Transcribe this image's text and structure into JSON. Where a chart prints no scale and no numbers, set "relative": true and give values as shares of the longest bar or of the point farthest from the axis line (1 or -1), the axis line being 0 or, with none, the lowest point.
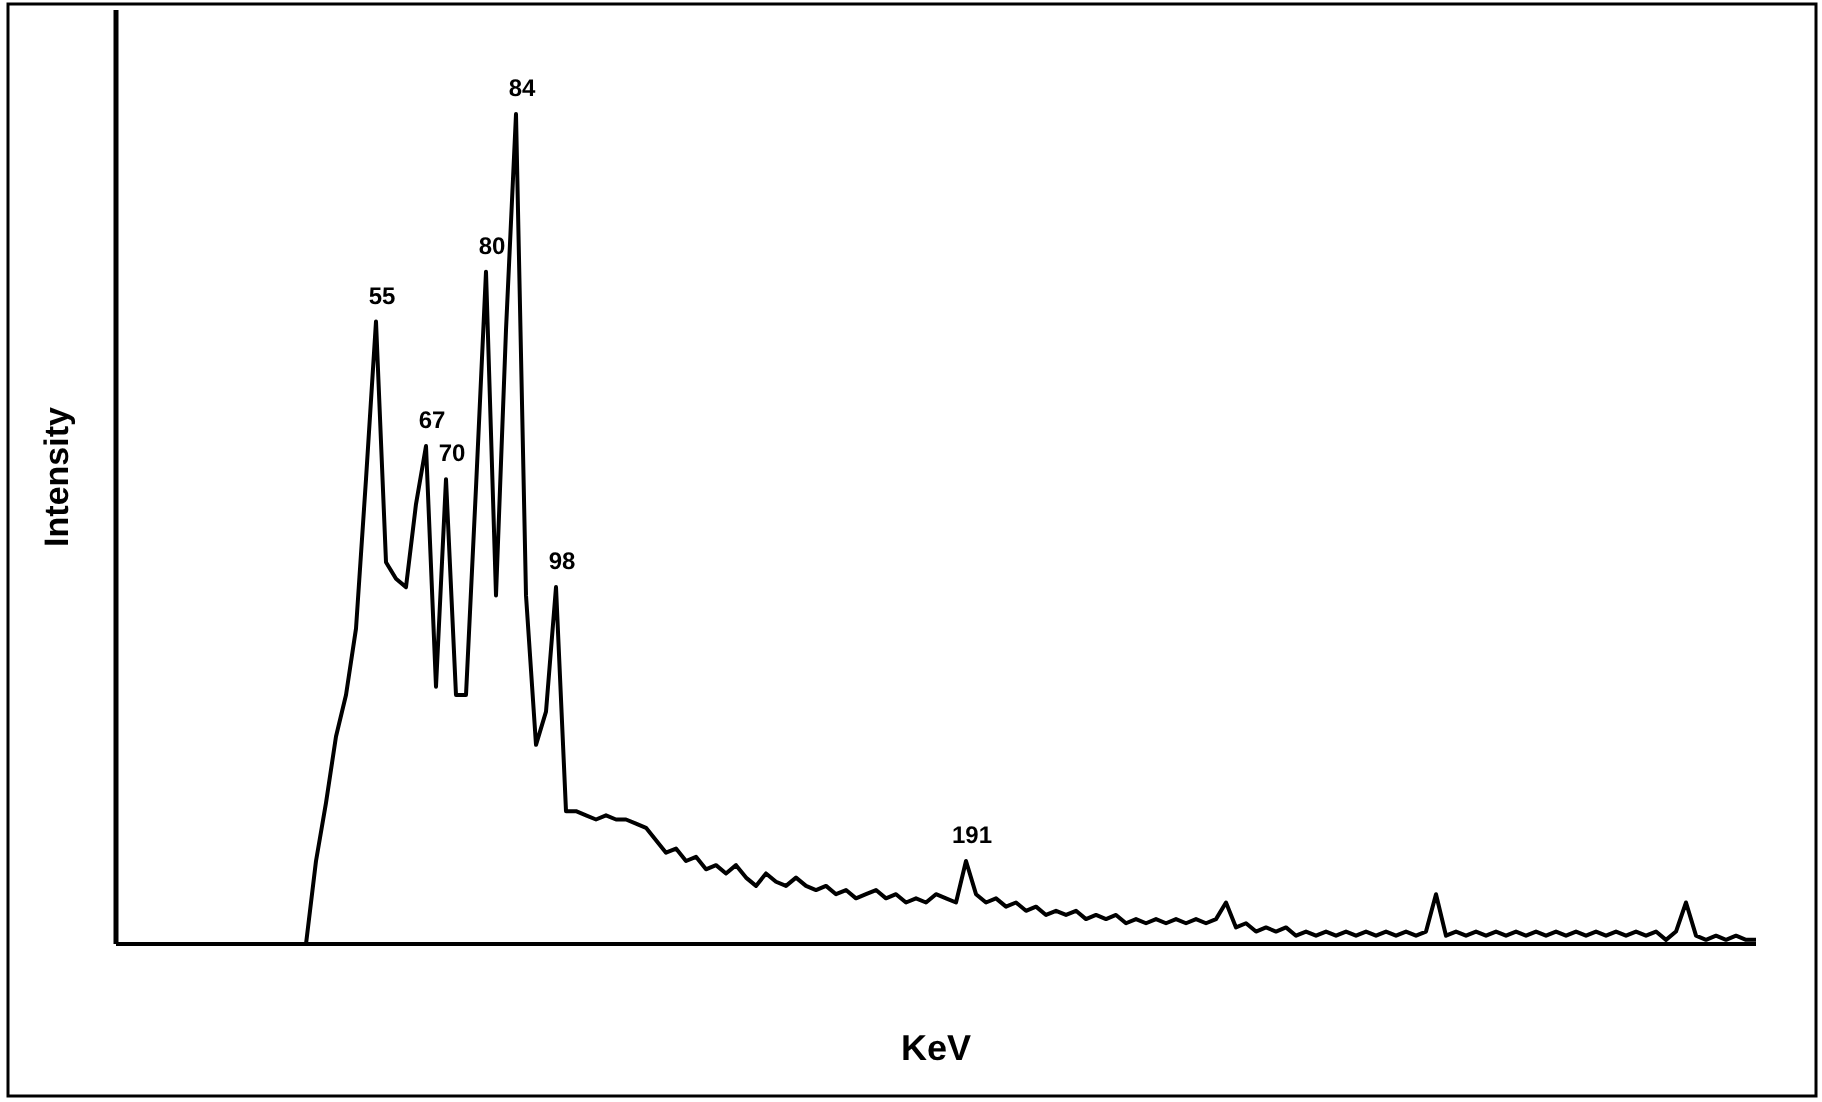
{
  "chart_data": {
    "type": "line",
    "xlabel": "KeV",
    "ylabel": "Intensity",
    "relative": true,
    "color": "#000000",
    "categories": [
      null,
      null,
      null,
      null,
      null,
      null,
      null,
      null,
      null,
      null,
      null,
      null,
      null,
      null,
      null,
      null,
      null,
      null,
      null,
      null,
      null,
      null,
      null,
      null,
      null,
      null,
      null,
      null,
      null,
      null,
      null,
      null,
      null,
      null,
      null,
      null,
      null,
      null,
      null,
      null,
      null,
      null,
      null,
      null,
      null,
      null,
      null,
      null,
      null,
      null,
      null,
      null,
      null,
      null,
      null,
      null,
      null,
      null,
      null,
      null,
      null,
      null,
      null,
      null,
      null,
      null,
      null,
      null,
      null,
      null,
      null,
      null,
      null,
      null,
      null,
      null,
      null,
      null,
      null,
      null,
      null,
      null,
      null,
      null,
      null,
      null,
      null,
      null,
      null,
      null,
      null,
      null,
      null,
      null,
      null,
      null,
      null,
      null,
      null,
      null,
      null,
      null,
      null,
      null,
      null,
      null,
      null,
      null,
      null,
      null,
      null,
      null,
      null,
      null,
      null,
      null,
      null,
      null,
      null,
      null,
      null,
      null,
      null,
      null,
      null,
      null,
      null,
      null,
      null,
      null,
      null,
      null,
      null,
      null,
      null,
      null,
      null,
      null,
      null,
      null,
      null,
      null,
      null,
      null,
      null,
      null,
      null,
      null,
      null,
      null,
      null,
      null,
      null,
      null,
      null,
      null,
      null,
      null,
      null,
      null,
      null,
      null,
      null,
      null,
      null
    ],
    "values": [
      0,
      0,
      0,
      0,
      0,
      0,
      0,
      0,
      0,
      0,
      0,
      0,
      0,
      0,
      0,
      0,
      0,
      0,
      0,
      0,
      0.1,
      0.17,
      0.25,
      0.3,
      0.38,
      0.56,
      0.75,
      0.46,
      0.44,
      0.43,
      0.53,
      0.6,
      0.31,
      0.56,
      0.3,
      0.3,
      0.55,
      0.81,
      0.42,
      0.74,
      1,
      0.42,
      0.24,
      0.28,
      0.43,
      0.16,
      0.16,
      0.155,
      0.15,
      0.155,
      0.15,
      0.15,
      0.145,
      0.14,
      0.125,
      0.11,
      0.115,
      0.1,
      0.105,
      0.09,
      0.095,
      0.085,
      0.095,
      0.08,
      0.07,
      0.085,
      0.075,
      0.07,
      0.08,
      0.07,
      0.065,
      0.07,
      0.06,
      0.065,
      0.055,
      0.06,
      0.065,
      0.055,
      0.06,
      0.05,
      0.055,
      0.05,
      0.06,
      0.055,
      0.05,
      0.1,
      0.06,
      0.05,
      0.055,
      0.045,
      0.05,
      0.04,
      0.045,
      0.035,
      0.04,
      0.035,
      0.04,
      0.03,
      0.035,
      0.03,
      0.035,
      0.025,
      0.03,
      0.025,
      0.03,
      0.025,
      0.03,
      0.025,
      0.03,
      0.025,
      0.03,
      0.05,
      0.02,
      0.025,
      0.015,
      0.02,
      0.015,
      0.02,
      0.01,
      0.015,
      0.01,
      0.015,
      0.01,
      0.015,
      0.01,
      0.015,
      0.01,
      0.015,
      0.01,
      0.015,
      0.01,
      0.015,
      0.06,
      0.01,
      0.015,
      0.01,
      0.015,
      0.01,
      0.015,
      0.01,
      0.015,
      0.01,
      0.015,
      0.01,
      0.015,
      0.01,
      0.015,
      0.01,
      0.015,
      0.01,
      0.015,
      0.01,
      0.015,
      0.01,
      0.015,
      0.005,
      0.015,
      0.05,
      0.01,
      0.005,
      0.01,
      0.005,
      0.01,
      0.005,
      0.005
    ],
    "annotations": [
      {
        "text": "55",
        "y": 0.75
      },
      {
        "text": "67",
        "y": 0.6
      },
      {
        "text": "70",
        "y": 0.56
      },
      {
        "text": "80",
        "y": 0.81
      },
      {
        "text": "84",
        "y": 1
      },
      {
        "text": "98",
        "y": 0.43
      },
      {
        "text": "191",
        "y": 0.1
      }
    ]
  }
}
